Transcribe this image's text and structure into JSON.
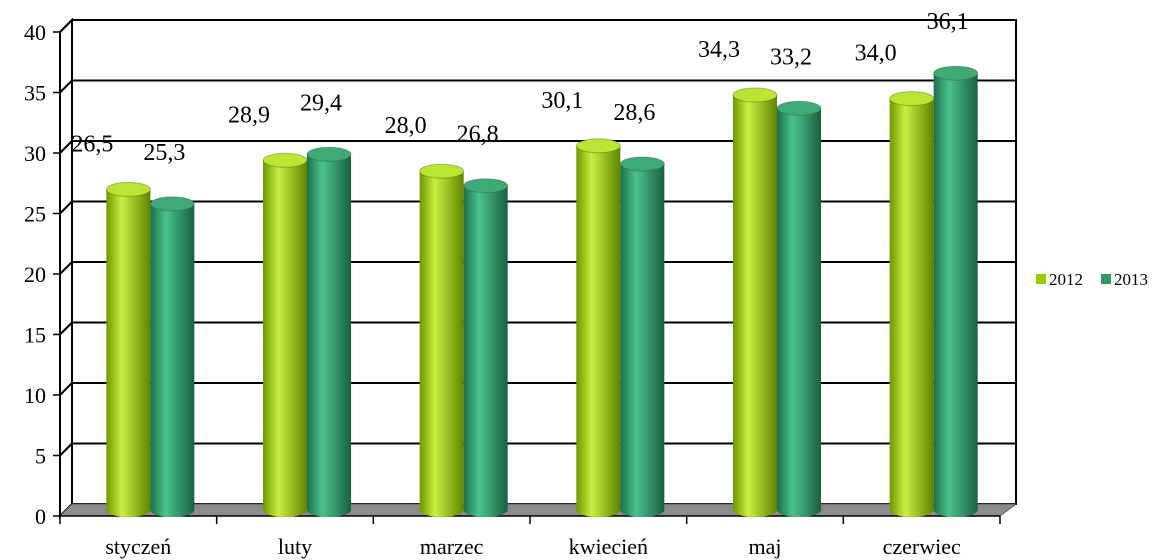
{
  "chart_data": {
    "type": "bar",
    "categories": [
      "styczeń",
      "luty",
      "marzec",
      "kwiecień",
      "maj",
      "czerwiec"
    ],
    "series": [
      {
        "name": "2012",
        "values": [
          26.5,
          28.9,
          28.0,
          30.1,
          34.3,
          34.0
        ],
        "labels": [
          "26,5",
          "28,9",
          "28,0",
          "30,1",
          "34,3",
          "34,0"
        ],
        "color": "#9ACD00"
      },
      {
        "name": "2013",
        "values": [
          25.3,
          29.4,
          26.8,
          28.6,
          33.2,
          36.1
        ],
        "labels": [
          "25,3",
          "29,4",
          "26,8",
          "28,6",
          "33,2",
          "36,1"
        ],
        "color": "#2E9A6A"
      }
    ],
    "yticks": [
      "0",
      "5",
      "10",
      "15",
      "20",
      "25",
      "30",
      "35",
      "40"
    ],
    "ylim": [
      0,
      40
    ],
    "grid": true,
    "legend_position": "right",
    "style": "3d-cylinder"
  }
}
